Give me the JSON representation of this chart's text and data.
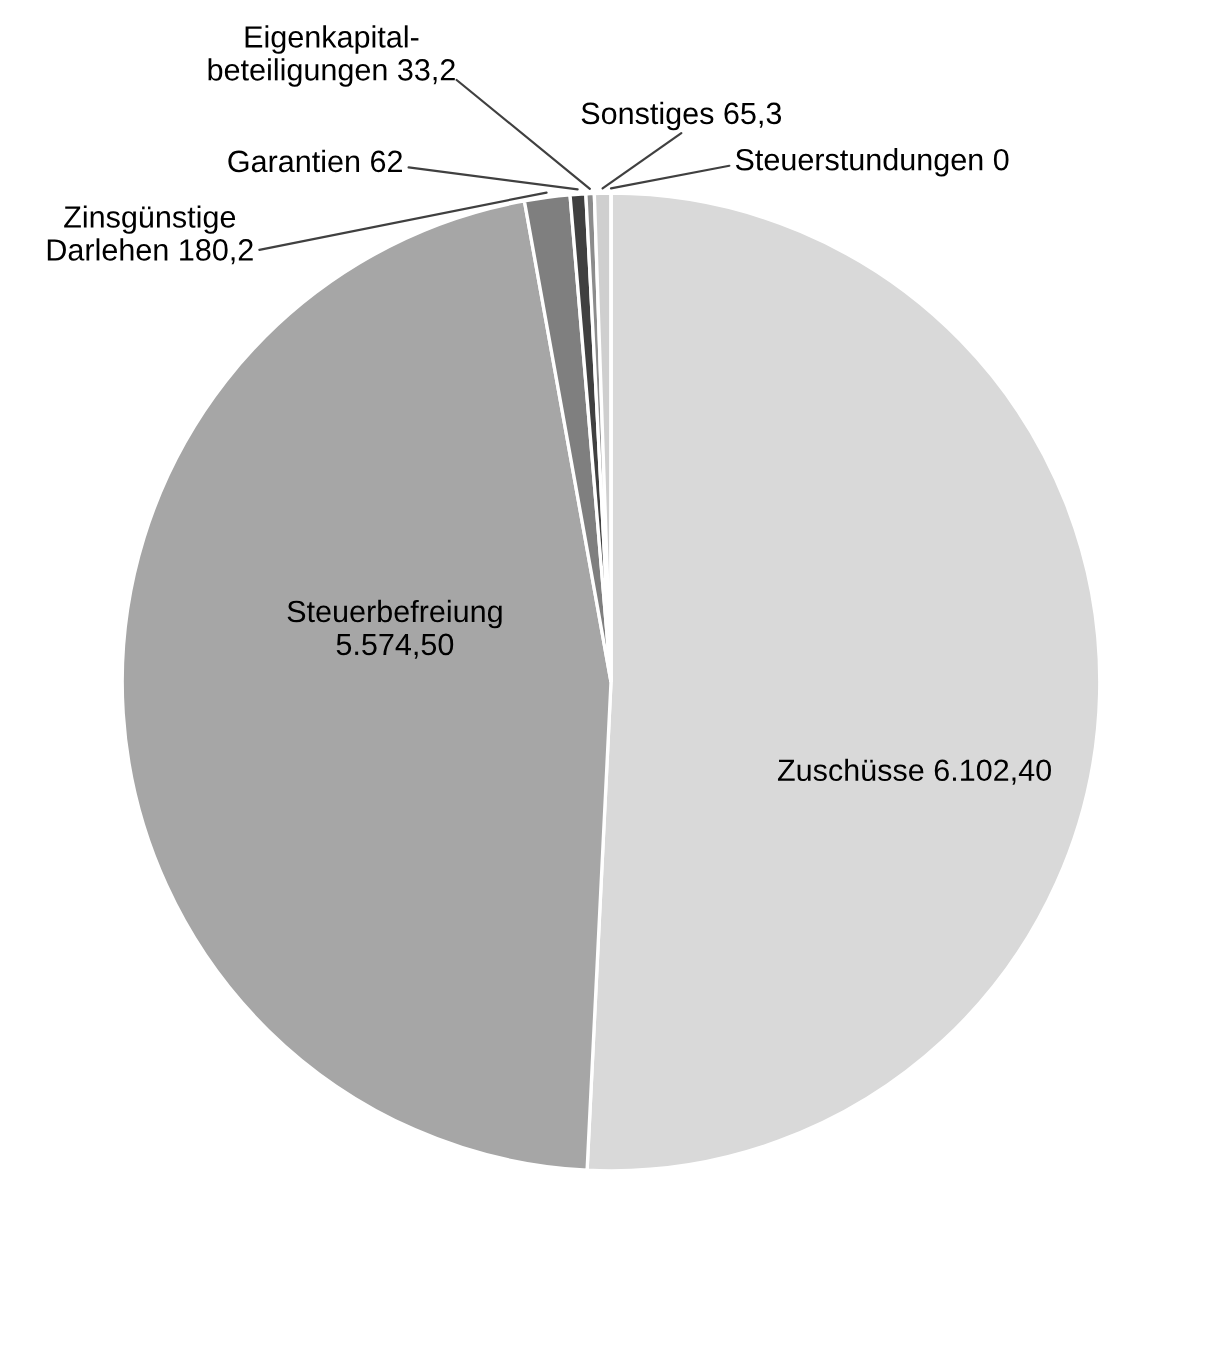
{
  "chart_data": {
    "type": "pie",
    "categories": [
      "Zuschüsse",
      "Steuerbefreiung",
      "Zinsgünstige\nDarlehen",
      "Garantien",
      "Eigenkapital-\nbeteiligungen",
      "Sonstiges",
      "Steuerstundungen"
    ],
    "values": [
      6102.4,
      5574.5,
      180.2,
      62,
      33.2,
      65.3,
      0
    ],
    "value_labels": [
      "6.102,40",
      "5.574,50",
      "180,2",
      "62",
      "33,2",
      "65,3",
      "0"
    ],
    "colors": [
      "#d9d9d9",
      "#a6a6a6",
      "#7f7f7f",
      "#404040",
      "#8c8c8c",
      "#cfcfcf",
      "#ffffff"
    ]
  }
}
